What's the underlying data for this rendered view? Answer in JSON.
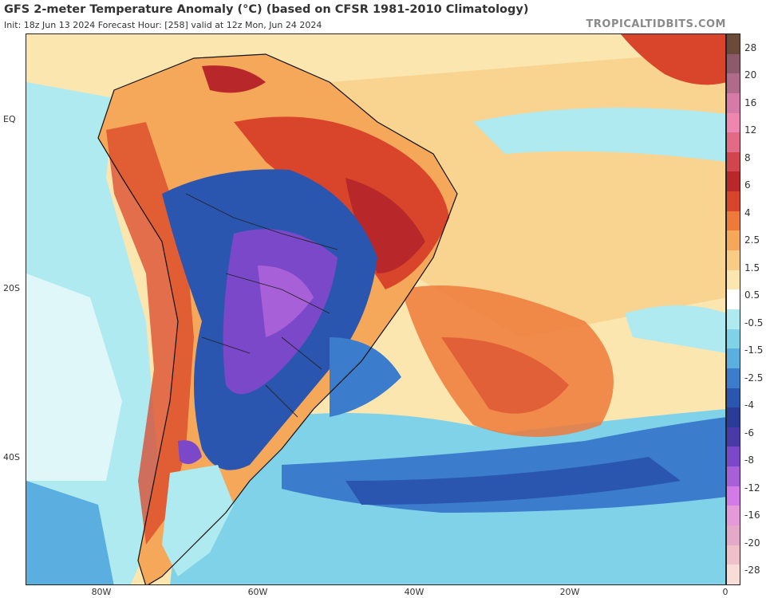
{
  "header": {
    "title": "GFS 2-meter Temperature Anomaly (°C) (based on CFSR 1981-2010 Climatology)",
    "subtitle": "Init: 18z Jun 13 2024   Forecast Hour: [258]   valid at 12z Mon, Jun 24 2024",
    "credit": "TROPICALTIDBITS.COM"
  },
  "axes": {
    "lat_labels": [
      "EQ",
      "20S",
      "40S"
    ],
    "lon_labels": [
      "80W",
      "60W",
      "40W",
      "20W",
      "0"
    ]
  },
  "colorbar": {
    "labels": [
      "28",
      "20",
      "16",
      "12",
      "8",
      "6",
      "4",
      "2.5",
      "1.5",
      "0.5",
      "-0.5",
      "-1.5",
      "-2.5",
      "-4",
      "-6",
      "-8",
      "-12",
      "-16",
      "-20",
      "-28"
    ],
    "colors": [
      "#6b4a3a",
      "#8c5a6a",
      "#b06a8a",
      "#d67aa8",
      "#ee86b0",
      "#e36a86",
      "#d1464e",
      "#b8282a",
      "#d9452a",
      "#ee7a3a",
      "#f5a85a",
      "#f8cc84",
      "#fbe6b0",
      "#ffffff",
      "#aeeaf0",
      "#7fd2e8",
      "#5aaee0",
      "#3c7ccc",
      "#2a56b0",
      "#2a3c98",
      "#4a3aa8",
      "#7a48c8",
      "#a860d8",
      "#d27ae6",
      "#e49ad8",
      "#e4a8c8",
      "#f0c0c8",
      "#f8dcd8"
    ]
  }
}
